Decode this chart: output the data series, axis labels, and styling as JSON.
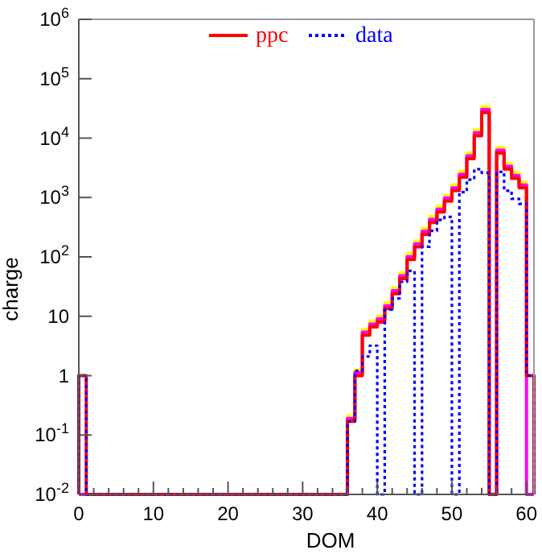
{
  "chart_data": {
    "type": "histogram",
    "xlabel": "DOM",
    "ylabel": "charge",
    "log": "y",
    "legend": "top",
    "xlim": [
      0,
      61
    ],
    "ylim": [
      0.01,
      1000000
    ],
    "xticks": [
      0,
      {
        "value": 2,
        "label": null
      },
      {
        "value": 4,
        "label": null
      },
      {
        "value": 6,
        "label": null
      },
      {
        "value": 8,
        "label": null
      },
      10,
      {
        "value": 12,
        "label": null
      },
      {
        "value": 14,
        "label": null
      },
      {
        "value": 16,
        "label": null
      },
      {
        "value": 18,
        "label": null
      },
      20,
      {
        "value": 22,
        "label": null
      },
      {
        "value": 24,
        "label": null
      },
      {
        "value": 26,
        "label": null
      },
      {
        "value": 28,
        "label": null
      },
      30,
      {
        "value": 32,
        "label": null
      },
      {
        "value": 34,
        "label": null
      },
      {
        "value": 36,
        "label": null
      },
      {
        "value": 38,
        "label": null
      },
      40,
      {
        "value": 42,
        "label": null
      },
      {
        "value": 44,
        "label": null
      },
      {
        "value": 46,
        "label": null
      },
      {
        "value": 48,
        "label": null
      },
      50,
      {
        "value": 52,
        "label": null
      },
      {
        "value": 54,
        "label": null
      },
      {
        "value": 56,
        "label": null
      },
      {
        "value": 58,
        "label": null
      },
      60
    ],
    "yticks": [
      {
        "value": 0.01,
        "label": "10$^{-2}$"
      },
      {
        "value": 0.1,
        "label": "10$^{-1}$"
      },
      1,
      10,
      {
        "value": 100,
        "label": "10$^{2}$"
      },
      {
        "value": 1000,
        "label": "10$^{3}$"
      },
      {
        "value": 10000,
        "label": "10$^{4}$"
      },
      {
        "value": 100000,
        "label": "10$^{5}$"
      },
      {
        "value": 1000000,
        "label": "10$^{6}$"
      }
    ],
    "bins": [
      0,
      1,
      2,
      3,
      4,
      5,
      6,
      7,
      8,
      9,
      10,
      11,
      12,
      13,
      14,
      15,
      16,
      17,
      18,
      19,
      20,
      21,
      22,
      23,
      24,
      25,
      26,
      27,
      28,
      29,
      30,
      31,
      32,
      33,
      34,
      35,
      36,
      37,
      38,
      39,
      40,
      41,
      42,
      43,
      44,
      45,
      46,
      47,
      48,
      49,
      50,
      51,
      52,
      53,
      54,
      55,
      56,
      57,
      58,
      59,
      60,
      61
    ],
    "series": [
      {
        "color": "#ffff00",
        "line_style": "solid",
        "values": [
          null,
          null,
          null,
          null,
          null,
          null,
          null,
          null,
          null,
          null,
          null,
          null,
          null,
          null,
          null,
          null,
          null,
          null,
          null,
          null,
          null,
          null,
          null,
          null,
          null,
          null,
          null,
          null,
          null,
          null,
          null,
          null,
          null,
          null,
          null,
          null,
          0.21,
          1.25,
          6,
          8.3,
          10,
          17,
          30,
          54,
          113,
          185,
          300,
          475,
          713,
          1090,
          1630,
          2750,
          5630,
          13800,
          33800,
          null,
          7000,
          3750,
          2630,
          1810,
          null
        ]
      },
      {
        "color": "#ff00ff",
        "line_style": "solid",
        "values": [
          null,
          null,
          null,
          null,
          null,
          null,
          null,
          null,
          null,
          null,
          null,
          null,
          null,
          null,
          null,
          null,
          null,
          null,
          null,
          null,
          null,
          null,
          null,
          null,
          null,
          null,
          null,
          null,
          null,
          null,
          null,
          null,
          null,
          null,
          null,
          null,
          0.19,
          1.12,
          5.4,
          7.4,
          9,
          15,
          27,
          48,
          101,
          166,
          269,
          426,
          638,
          974,
          1460,
          2460,
          5040,
          12300,
          30200,
          null,
          6270,
          3360,
          2350,
          1620,
          null
        ]
      },
      {
        "name": "ppc",
        "color": "#ff0000",
        "line_style": "solid",
        "values": [
          1,
          null,
          null,
          null,
          null,
          null,
          null,
          null,
          null,
          null,
          null,
          null,
          null,
          null,
          null,
          null,
          null,
          null,
          null,
          null,
          null,
          null,
          null,
          null,
          null,
          null,
          null,
          null,
          null,
          null,
          null,
          null,
          null,
          null,
          null,
          null,
          0.17,
          1,
          4.8,
          6.6,
          8,
          13.5,
          24,
          43,
          90,
          148,
          240,
          380,
          570,
          870,
          1300,
          2200,
          4500,
          11000,
          27000,
          null,
          5600,
          3000,
          2100,
          1450,
          1
        ]
      },
      {
        "name": "data",
        "color": "#0000ff",
        "line_style": "dotted",
        "values": [
          1,
          null,
          null,
          null,
          null,
          null,
          null,
          null,
          null,
          null,
          null,
          null,
          null,
          null,
          null,
          null,
          null,
          null,
          null,
          null,
          null,
          null,
          null,
          null,
          null,
          null,
          null,
          null,
          null,
          null,
          null,
          null,
          null,
          null,
          null,
          null,
          0.17,
          1.2,
          2.1,
          3.2,
          null,
          13,
          20,
          38,
          58,
          null,
          148,
          275,
          420,
          470,
          null,
          1230,
          2000,
          3000,
          2600,
          null,
          2700,
          1300,
          950,
          780,
          1
        ]
      }
    ]
  }
}
